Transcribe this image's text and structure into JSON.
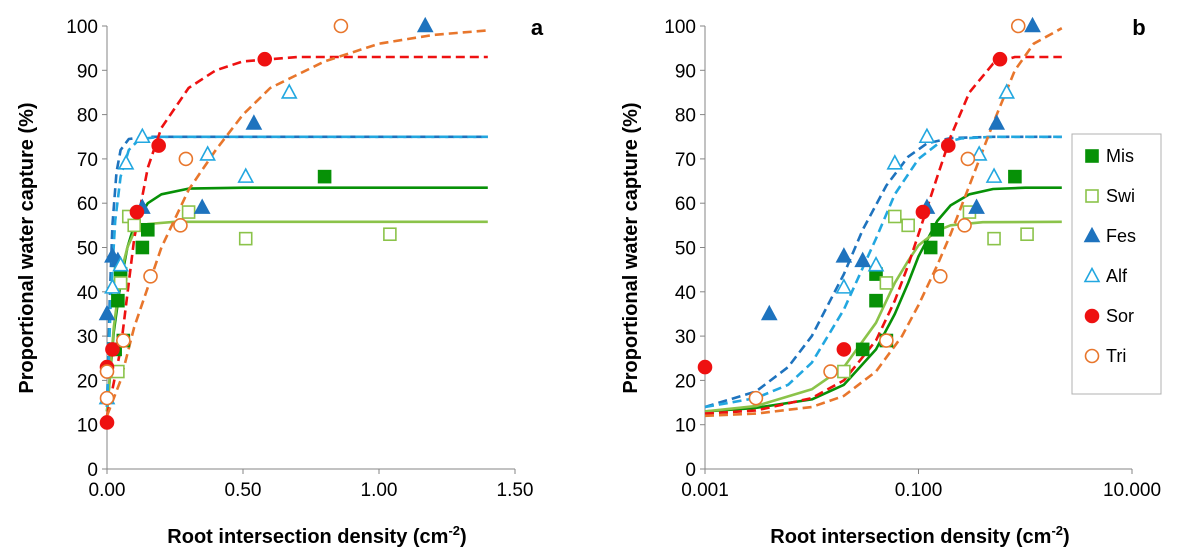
{
  "figure": {
    "legend_panel": 1,
    "legend_order": [
      "Mis",
      "Swi",
      "Fes",
      "Alf",
      "Sor",
      "Tri"
    ]
  },
  "series_styles": [
    {
      "name": "Mis",
      "color": "#079107",
      "marker": "square",
      "filled": true,
      "curve_dash": false
    },
    {
      "name": "Swi",
      "color": "#8BC34A",
      "marker": "square",
      "filled": false,
      "curve_dash": false
    },
    {
      "name": "Fes",
      "color": "#1E73BE",
      "marker": "triangle",
      "filled": true,
      "curve_dash": true
    },
    {
      "name": "Alf",
      "color": "#22A7E0",
      "marker": "triangle",
      "filled": false,
      "curve_dash": true
    },
    {
      "name": "Sor",
      "color": "#EE1111",
      "marker": "circle",
      "filled": true,
      "curve_dash": true
    },
    {
      "name": "Tri",
      "color": "#E8762C",
      "marker": "circle",
      "filled": false,
      "curve_dash": true
    }
  ],
  "chart_data": [
    {
      "type": "scatter",
      "panel_label": "a",
      "xlabel": "Root intersection density (cm",
      "xlabel_sup": "-2",
      "xlabel_end": ")",
      "ylabel": "Proportional water capture (%)",
      "xscale": "linear",
      "xlim": [
        0,
        1.5
      ],
      "ylim": [
        0,
        100
      ],
      "xticks": [
        0,
        0.5,
        1.0,
        1.5
      ],
      "xticklabels": [
        "0.00",
        "0.50",
        "1.00",
        "1.50"
      ],
      "yticks": [
        0,
        10,
        20,
        30,
        40,
        50,
        60,
        70,
        80,
        90,
        100
      ],
      "grid": false,
      "series": [
        {
          "name": "Mis",
          "points": [
            [
              0.03,
              27
            ],
            [
              0.04,
              38
            ],
            [
              0.05,
              44
            ],
            [
              0.06,
              29
            ],
            [
              0.13,
              50
            ],
            [
              0.15,
              54
            ],
            [
              0.8,
              66
            ]
          ],
          "curve": [
            [
              0,
              13
            ],
            [
              0.025,
              31
            ],
            [
              0.05,
              42
            ],
            [
              0.075,
              50
            ],
            [
              0.1,
              55
            ],
            [
              0.15,
              60
            ],
            [
              0.2,
              62
            ],
            [
              0.3,
              63.3
            ],
            [
              0.5,
              63.5
            ],
            [
              1.4,
              63.5
            ]
          ]
        },
        {
          "name": "Swi",
          "points": [
            [
              0.04,
              22
            ],
            [
              0.05,
              42
            ],
            [
              0.08,
              57
            ],
            [
              0.1,
              55
            ],
            [
              0.3,
              58
            ],
            [
              0.51,
              52
            ],
            [
              1.04,
              53
            ]
          ],
          "curve": [
            [
              0,
              13
            ],
            [
              0.025,
              32
            ],
            [
              0.05,
              44
            ],
            [
              0.075,
              50
            ],
            [
              0.1,
              53.5
            ],
            [
              0.15,
              55.3
            ],
            [
              0.25,
              55.8
            ],
            [
              1.4,
              55.8
            ]
          ]
        },
        {
          "name": "Fes",
          "points": [
            [
              0.0,
              35
            ],
            [
              0.02,
              48
            ],
            [
              0.04,
              47
            ],
            [
              0.13,
              59
            ],
            [
              0.35,
              59
            ],
            [
              0.54,
              78
            ],
            [
              1.17,
              100
            ]
          ],
          "curve": [
            [
              0,
              14
            ],
            [
              0.01,
              38
            ],
            [
              0.02,
              55
            ],
            [
              0.035,
              67
            ],
            [
              0.05,
              72
            ],
            [
              0.08,
              74.5
            ],
            [
              0.15,
              75
            ],
            [
              1.4,
              75
            ]
          ]
        },
        {
          "name": "Alf",
          "points": [
            [
              0.0,
              16
            ],
            [
              0.02,
              41
            ],
            [
              0.05,
              46
            ],
            [
              0.07,
              69
            ],
            [
              0.13,
              75
            ],
            [
              0.37,
              71
            ],
            [
              0.51,
              66
            ],
            [
              0.67,
              85
            ]
          ],
          "curve": [
            [
              0,
              14
            ],
            [
              0.015,
              40
            ],
            [
              0.03,
              56
            ],
            [
              0.05,
              66
            ],
            [
              0.08,
              72
            ],
            [
              0.12,
              74.5
            ],
            [
              0.2,
              75
            ],
            [
              1.4,
              75
            ]
          ]
        },
        {
          "name": "Sor",
          "points": [
            [
              0.0,
              10.5
            ],
            [
              0.0,
              23
            ],
            [
              0.02,
              27
            ],
            [
              0.11,
              58
            ],
            [
              0.19,
              73
            ],
            [
              0.58,
              92.5
            ]
          ],
          "curve": [
            [
              0,
              12
            ],
            [
              0.05,
              27
            ],
            [
              0.1,
              52
            ],
            [
              0.15,
              68
            ],
            [
              0.2,
              77
            ],
            [
              0.3,
              86
            ],
            [
              0.4,
              90
            ],
            [
              0.5,
              92
            ],
            [
              0.7,
              93
            ],
            [
              1.4,
              93
            ]
          ]
        },
        {
          "name": "Tri",
          "points": [
            [
              0.0,
              16
            ],
            [
              0.0,
              22
            ],
            [
              0.06,
              29
            ],
            [
              0.16,
              43.5
            ],
            [
              0.27,
              55
            ],
            [
              0.29,
              70
            ],
            [
              0.86,
              100
            ]
          ],
          "curve": [
            [
              0,
              12
            ],
            [
              0.05,
              20
            ],
            [
              0.1,
              32
            ],
            [
              0.15,
              41
            ],
            [
              0.2,
              50
            ],
            [
              0.3,
              63
            ],
            [
              0.4,
              72
            ],
            [
              0.5,
              80
            ],
            [
              0.6,
              86
            ],
            [
              0.8,
              92
            ],
            [
              1.0,
              96
            ],
            [
              1.2,
              98
            ],
            [
              1.4,
              99
            ]
          ]
        }
      ]
    },
    {
      "type": "scatter",
      "panel_label": "b",
      "xlabel": "Root intersection density (cm",
      "xlabel_sup": "-2",
      "xlabel_end": ")",
      "ylabel": "Proportional water capture (%)",
      "xscale": "log",
      "xlim": [
        0.001,
        10
      ],
      "ylim": [
        0,
        100
      ],
      "xticks": [
        0.001,
        0.1,
        10
      ],
      "xticklabels": [
        "0.001",
        "0.100",
        "10.000"
      ],
      "yticks": [
        0,
        10,
        20,
        30,
        40,
        50,
        60,
        70,
        80,
        90,
        100
      ],
      "grid": false,
      "legend": "right",
      "series": [
        {
          "name": "Mis",
          "points": [
            [
              0.03,
              27
            ],
            [
              0.04,
              38
            ],
            [
              0.04,
              44
            ],
            [
              0.05,
              29
            ],
            [
              0.13,
              50
            ],
            [
              0.15,
              54
            ],
            [
              0.8,
              66
            ]
          ],
          "curve": [
            [
              0.001,
              13
            ],
            [
              0.003,
              13.8
            ],
            [
              0.01,
              15.7
            ],
            [
              0.02,
              19
            ],
            [
              0.04,
              27
            ],
            [
              0.06,
              35
            ],
            [
              0.08,
              42
            ],
            [
              0.1,
              48
            ],
            [
              0.15,
              56
            ],
            [
              0.2,
              59.5
            ],
            [
              0.3,
              62
            ],
            [
              0.5,
              63.2
            ],
            [
              1,
              63.5
            ],
            [
              2.2,
              63.5
            ]
          ]
        },
        {
          "name": "Swi",
          "points": [
            [
              0.02,
              22
            ],
            [
              0.05,
              42
            ],
            [
              0.06,
              57
            ],
            [
              0.08,
              55
            ],
            [
              0.3,
              58
            ],
            [
              0.51,
              52
            ],
            [
              1.04,
              53
            ]
          ],
          "curve": [
            [
              0.001,
              13
            ],
            [
              0.003,
              14.2
            ],
            [
              0.01,
              18
            ],
            [
              0.02,
              23
            ],
            [
              0.04,
              33
            ],
            [
              0.06,
              42
            ],
            [
              0.08,
              47
            ],
            [
              0.1,
              50.5
            ],
            [
              0.15,
              53.8
            ],
            [
              0.2,
              55
            ],
            [
              0.4,
              55.7
            ],
            [
              2.2,
              55.8
            ]
          ]
        },
        {
          "name": "Fes",
          "points": [
            [
              0.004,
              35
            ],
            [
              0.02,
              48
            ],
            [
              0.03,
              47
            ],
            [
              0.12,
              59
            ],
            [
              0.35,
              59
            ],
            [
              0.54,
              78
            ],
            [
              1.17,
              100
            ]
          ],
          "curve": [
            [
              0.001,
              14
            ],
            [
              0.003,
              17.5
            ],
            [
              0.006,
              23
            ],
            [
              0.01,
              30
            ],
            [
              0.02,
              44
            ],
            [
              0.03,
              54
            ],
            [
              0.05,
              64
            ],
            [
              0.08,
              70.5
            ],
            [
              0.12,
              73.5
            ],
            [
              0.2,
              74.7
            ],
            [
              0.5,
              75
            ],
            [
              2.2,
              75
            ]
          ]
        },
        {
          "name": "Alf",
          "points": [
            [
              0.02,
              41
            ],
            [
              0.04,
              46
            ],
            [
              0.06,
              69
            ],
            [
              0.12,
              75
            ],
            [
              0.37,
              71
            ],
            [
              0.51,
              66
            ],
            [
              0.67,
              85
            ]
          ],
          "curve": [
            [
              0.001,
              14
            ],
            [
              0.003,
              16
            ],
            [
              0.006,
              19
            ],
            [
              0.01,
              24
            ],
            [
              0.02,
              36
            ],
            [
              0.04,
              52
            ],
            [
              0.06,
              62
            ],
            [
              0.1,
              70
            ],
            [
              0.15,
              73.3
            ],
            [
              0.25,
              74.6
            ],
            [
              0.5,
              75
            ],
            [
              2.2,
              75
            ]
          ]
        },
        {
          "name": "Sor",
          "points": [
            [
              0.001,
              23
            ],
            [
              0.02,
              27
            ],
            [
              0.11,
              58
            ],
            [
              0.19,
              73
            ],
            [
              0.58,
              92.5
            ]
          ],
          "curve": [
            [
              0.001,
              12.5
            ],
            [
              0.003,
              13.2
            ],
            [
              0.01,
              16
            ],
            [
              0.02,
              20
            ],
            [
              0.04,
              29
            ],
            [
              0.06,
              38
            ],
            [
              0.08,
              46
            ],
            [
              0.1,
              53
            ],
            [
              0.15,
              66
            ],
            [
              0.2,
              75
            ],
            [
              0.3,
              85
            ],
            [
              0.5,
              91.5
            ],
            [
              0.8,
              93
            ],
            [
              2.2,
              93
            ]
          ]
        },
        {
          "name": "Tri",
          "points": [
            [
              0.003,
              16
            ],
            [
              0.015,
              22
            ],
            [
              0.05,
              29
            ],
            [
              0.16,
              43.5
            ],
            [
              0.27,
              55
            ],
            [
              0.29,
              70
            ],
            [
              0.86,
              100
            ]
          ],
          "curve": [
            [
              0.001,
              12
            ],
            [
              0.003,
              12.5
            ],
            [
              0.01,
              14
            ],
            [
              0.02,
              16.5
            ],
            [
              0.04,
              22
            ],
            [
              0.07,
              30
            ],
            [
              0.1,
              37
            ],
            [
              0.15,
              46
            ],
            [
              0.2,
              53
            ],
            [
              0.3,
              64
            ],
            [
              0.5,
              78
            ],
            [
              0.8,
              90
            ],
            [
              1.2,
              96
            ],
            [
              2.2,
              99.5
            ]
          ]
        }
      ]
    }
  ]
}
